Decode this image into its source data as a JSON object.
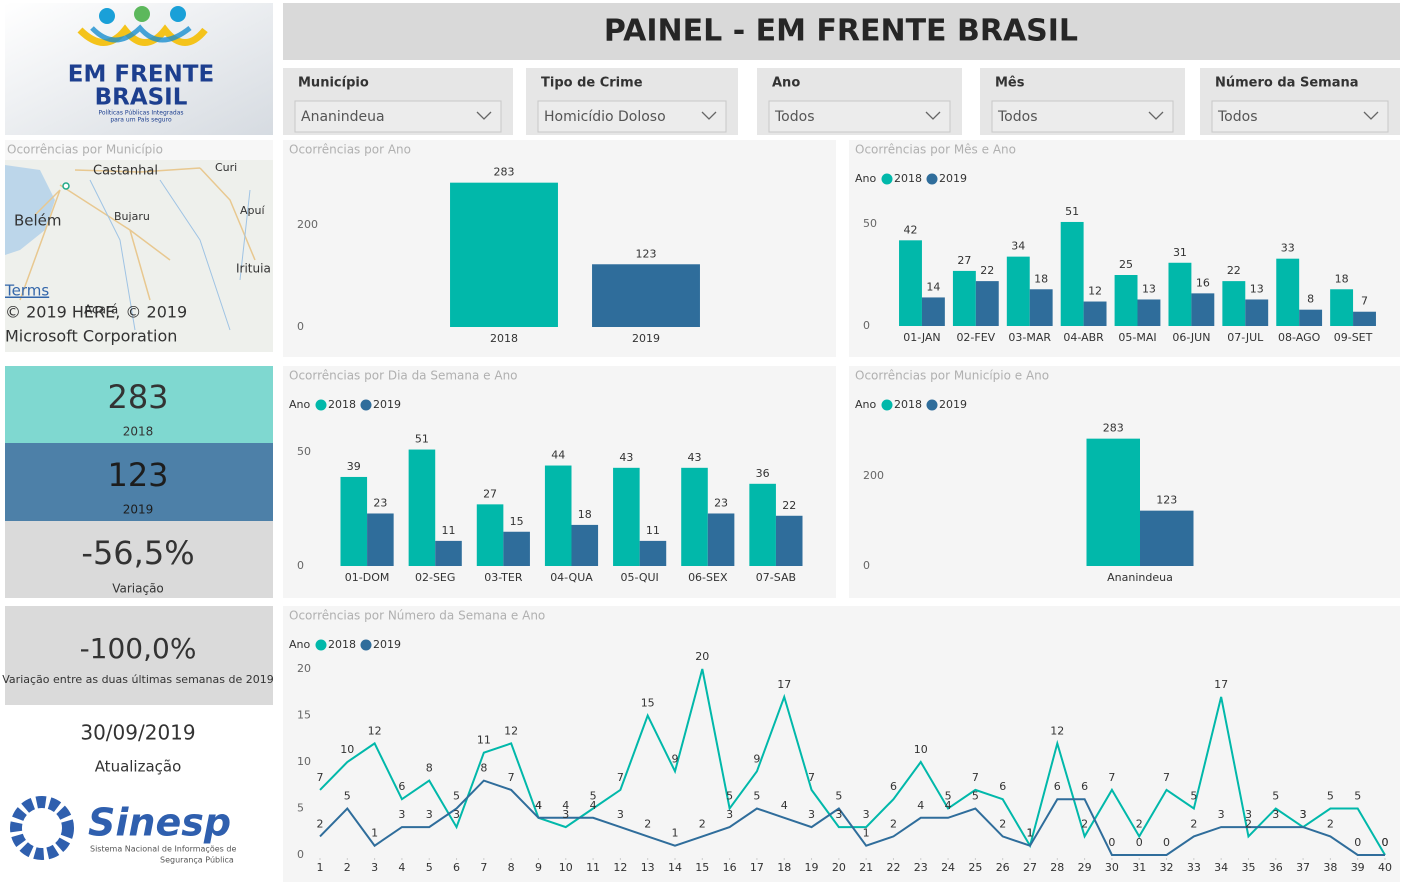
{
  "header": {
    "title": "PAINEL - EM FRENTE BRASIL"
  },
  "logo": {
    "line1": "EM FRENTE",
    "line2": "BRASIL",
    "tagline1": "Políticas Públicas Integradas",
    "tagline2": "para um País seguro"
  },
  "filters": [
    {
      "label": "Município",
      "value": "Ananindeua"
    },
    {
      "label": "Tipo de Crime",
      "value": "Homicídio Doloso"
    },
    {
      "label": "Ano",
      "value": "Todos"
    },
    {
      "label": "Mês",
      "value": "Todos"
    },
    {
      "label": "Número da Semana",
      "value": "Todos"
    }
  ],
  "map": {
    "title": "Ocorrências por Município",
    "places": [
      "Castanhal",
      "Curi",
      "Belém",
      "Bujaru",
      "Apuí",
      "Irituia",
      "Acará"
    ],
    "terms": "Terms",
    "copyright1": "© 2019 HERE, © 2019",
    "copyright2": "Microsoft Corporation"
  },
  "kpis": [
    {
      "value": "283",
      "label": "2018"
    },
    {
      "value": "123",
      "label": "2019"
    },
    {
      "value": "-56,5%",
      "label": "Variação"
    },
    {
      "value": "-100,0%",
      "label": "Variação entre as duas últimas semanas de 2019"
    },
    {
      "value": "30/09/2019",
      "label": "Atualização"
    }
  ],
  "sinesp": {
    "name": "Sinesp",
    "sub1": "Sistema Nacional de Informações de",
    "sub2": "Segurança Pública"
  },
  "chart_data": [
    {
      "type": "bar",
      "title": "Ocorrências por Ano",
      "categories": [
        "2018",
        "2019"
      ],
      "values": [
        283,
        123
      ],
      "colors": [
        "#01b8aa",
        "#2f6d9b"
      ],
      "ylim": [
        0,
        300
      ],
      "yticks": [
        0,
        200
      ],
      "grid": false
    },
    {
      "type": "bar",
      "title": "Ocorrências por Mês e Ano",
      "legend_title": "Ano",
      "categories": [
        "01-JAN",
        "02-FEV",
        "03-MAR",
        "04-ABR",
        "05-MAI",
        "06-JUN",
        "07-JUL",
        "08-AGO",
        "09-SET"
      ],
      "series": [
        {
          "name": "2018",
          "color": "#01b8aa",
          "values": [
            42,
            27,
            34,
            51,
            25,
            31,
            22,
            33,
            18
          ]
        },
        {
          "name": "2019",
          "color": "#2f6d9b",
          "values": [
            14,
            22,
            18,
            12,
            13,
            16,
            13,
            8,
            7
          ]
        }
      ],
      "ylim": [
        0,
        60
      ],
      "yticks": [
        0,
        50
      ],
      "grid": false
    },
    {
      "type": "bar",
      "title": "Ocorrências por Dia da Semana e Ano",
      "legend_title": "Ano",
      "categories": [
        "01-DOM",
        "02-SEG",
        "03-TER",
        "04-QUA",
        "05-QUI",
        "06-SEX",
        "07-SAB"
      ],
      "series": [
        {
          "name": "2018",
          "color": "#01b8aa",
          "values": [
            39,
            51,
            27,
            44,
            43,
            43,
            36
          ]
        },
        {
          "name": "2019",
          "color": "#2f6d9b",
          "values": [
            23,
            11,
            15,
            18,
            11,
            23,
            22
          ]
        }
      ],
      "ylim": [
        0,
        60
      ],
      "yticks": [
        0,
        50
      ],
      "grid": false
    },
    {
      "type": "bar",
      "title": "Ocorrências por Município e Ano",
      "legend_title": "Ano",
      "categories": [
        "Ananindeua"
      ],
      "series": [
        {
          "name": "2018",
          "color": "#01b8aa",
          "values": [
            283
          ]
        },
        {
          "name": "2019",
          "color": "#2f6d9b",
          "values": [
            123
          ]
        }
      ],
      "ylim": [
        0,
        300
      ],
      "yticks": [
        0,
        200
      ],
      "grid": false
    },
    {
      "type": "line",
      "title": "Ocorrências por Número da Semana e Ano",
      "legend_title": "Ano",
      "x": [
        1,
        2,
        3,
        4,
        5,
        6,
        7,
        8,
        9,
        10,
        11,
        12,
        13,
        14,
        15,
        16,
        17,
        18,
        19,
        20,
        21,
        22,
        23,
        24,
        25,
        26,
        27,
        28,
        29,
        30,
        31,
        32,
        33,
        34,
        35,
        36,
        37,
        38,
        39,
        40
      ],
      "series": [
        {
          "name": "2018",
          "color": "#01b8aa",
          "values": [
            7,
            10,
            12,
            6,
            8,
            3,
            11,
            12,
            4,
            3,
            5,
            7,
            15,
            9,
            20,
            5,
            9,
            17,
            7,
            3,
            3,
            6,
            10,
            5,
            7,
            6,
            1,
            12,
            2,
            7,
            2,
            7,
            5,
            17,
            2,
            5,
            3,
            5,
            5,
            0
          ]
        },
        {
          "name": "2019",
          "color": "#2f6d9b",
          "values": [
            2,
            5,
            1,
            3,
            3,
            5,
            8,
            7,
            4,
            4,
            4,
            3,
            2,
            1,
            2,
            3,
            5,
            4,
            3,
            5,
            1,
            2,
            4,
            4,
            5,
            2,
            1,
            6,
            6,
            0,
            0,
            0,
            2,
            3,
            3,
            3,
            3,
            2,
            0,
            0
          ]
        }
      ],
      "xlim": [
        1,
        40
      ],
      "xticks": [
        1,
        2,
        3,
        4,
        5,
        6,
        7,
        8,
        9,
        10,
        11,
        12,
        13,
        14,
        15,
        16,
        17,
        18,
        19,
        20,
        21,
        22,
        23,
        24,
        25,
        26,
        27,
        28,
        29,
        30,
        31,
        32,
        33,
        34,
        35,
        36,
        37,
        38,
        39,
        40
      ],
      "ylim": [
        0,
        20
      ],
      "yticks": [
        0,
        5,
        10,
        15,
        20
      ],
      "grid": false
    }
  ]
}
